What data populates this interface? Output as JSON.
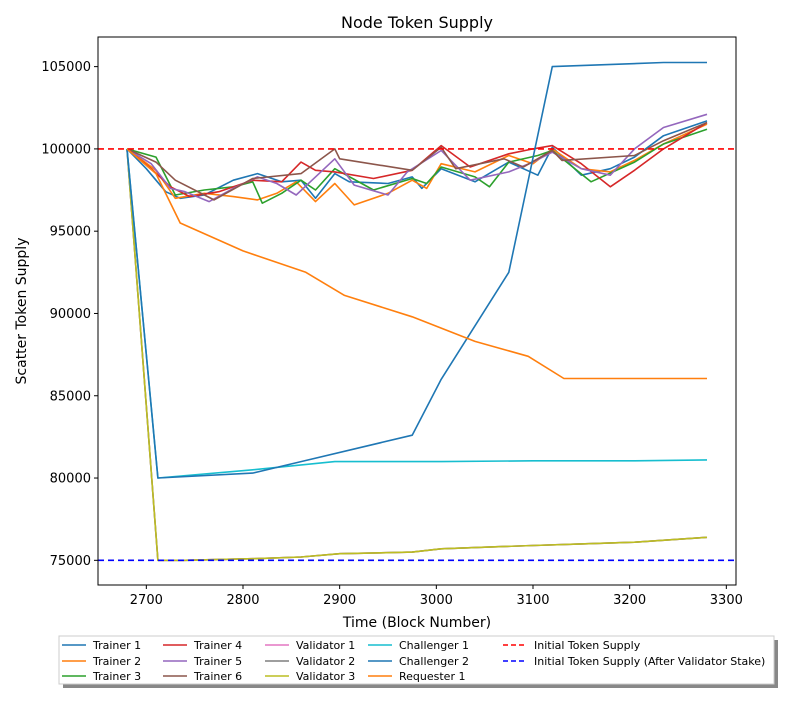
{
  "chart_data": {
    "type": "line",
    "title": "Node Token Supply",
    "xlabel": "Time (Block Number)",
    "ylabel": "Scatter Token Supply",
    "xlim": [
      2650,
      3310
    ],
    "ylim": [
      73500,
      106800
    ],
    "xticks": [
      2700,
      2800,
      2900,
      3000,
      3100,
      3200,
      3300
    ],
    "yticks": [
      75000,
      80000,
      85000,
      90000,
      95000,
      100000,
      105000
    ],
    "xtick_labels": [
      "2700",
      "2800",
      "2900",
      "3000",
      "3100",
      "3200",
      "3300"
    ],
    "ytick_labels": [
      "75000",
      "80000",
      "85000",
      "90000",
      "95000",
      "100000",
      "105000"
    ],
    "grid": false,
    "legend_position": "bottom, outside plot area",
    "series": [
      {
        "name": "Trainer 1",
        "color": "#1f77b4",
        "dash": "solid",
        "x": [
          2680,
          2700,
          2720,
          2735,
          2760,
          2790,
          2815,
          2840,
          2860,
          2875,
          2895,
          2910,
          2950,
          2975,
          2985,
          3005,
          3040,
          3075,
          3105,
          3120,
          3150,
          3180,
          3205,
          3235,
          3280
        ],
        "y": [
          100000,
          98800,
          97400,
          97000,
          97200,
          98100,
          98500,
          98000,
          98100,
          97000,
          98500,
          98000,
          97900,
          98300,
          97600,
          98800,
          98000,
          99200,
          98400,
          100100,
          98400,
          98800,
          99500,
          100800,
          101700
        ]
      },
      {
        "name": "Trainer 2",
        "color": "#ff7f0e",
        "dash": "solid",
        "x": [
          2680,
          2710,
          2730,
          2760,
          2790,
          2815,
          2835,
          2855,
          2875,
          2895,
          2915,
          2950,
          2975,
          2990,
          3005,
          3040,
          3075,
          3100,
          3120,
          3150,
          3180,
          3205,
          3235,
          3280
        ],
        "y": [
          100000,
          98700,
          97000,
          97300,
          97100,
          96900,
          97300,
          98000,
          96800,
          97900,
          96600,
          97300,
          98100,
          97600,
          99100,
          98600,
          99600,
          99100,
          100000,
          98800,
          98600,
          99300,
          100300,
          101500
        ]
      },
      {
        "name": "Trainer 3",
        "color": "#2ca02c",
        "dash": "solid",
        "x": [
          2680,
          2710,
          2730,
          2760,
          2790,
          2810,
          2820,
          2840,
          2860,
          2875,
          2895,
          2935,
          2975,
          2990,
          3005,
          3040,
          3055,
          3075,
          3105,
          3120,
          3160,
          3205,
          3235,
          3280
        ],
        "y": [
          100000,
          99500,
          97200,
          97500,
          97700,
          98000,
          96700,
          97300,
          98100,
          97500,
          98800,
          97500,
          98200,
          97900,
          98900,
          98300,
          97700,
          99200,
          99600,
          99900,
          98000,
          99200,
          100300,
          101200
        ]
      },
      {
        "name": "Trainer 4",
        "color": "#d62728",
        "dash": "solid",
        "x": [
          2680,
          2705,
          2725,
          2745,
          2775,
          2810,
          2840,
          2860,
          2875,
          2895,
          2935,
          2975,
          3005,
          3035,
          3075,
          3100,
          3120,
          3150,
          3180,
          3205,
          3235,
          3280
        ],
        "y": [
          100000,
          98800,
          97700,
          97100,
          97400,
          98100,
          98000,
          99200,
          98700,
          98600,
          98200,
          98700,
          100200,
          98900,
          99700,
          100000,
          100200,
          99100,
          97700,
          98700,
          100000,
          101600
        ]
      },
      {
        "name": "Trainer 5",
        "color": "#9467bd",
        "dash": "solid",
        "x": [
          2680,
          2705,
          2725,
          2740,
          2765,
          2790,
          2815,
          2835,
          2855,
          2875,
          2895,
          2915,
          2950,
          2970,
          3005,
          3035,
          3075,
          3100,
          3120,
          3150,
          3180,
          3205,
          3235,
          3280
        ],
        "y": [
          100000,
          99100,
          97600,
          97400,
          96800,
          97600,
          98300,
          97900,
          97200,
          98300,
          99400,
          97800,
          97200,
          98600,
          99900,
          98100,
          98600,
          99200,
          99800,
          98800,
          98400,
          100000,
          101300,
          102100
        ]
      },
      {
        "name": "Trainer 6",
        "color": "#8c564b",
        "dash": "solid",
        "x": [
          2680,
          2710,
          2730,
          2770,
          2810,
          2860,
          2895,
          2900,
          2975,
          3005,
          3020,
          3070,
          3090,
          3120,
          3130,
          3205,
          3235,
          3280
        ],
        "y": [
          100000,
          99200,
          98100,
          96900,
          98200,
          98500,
          100000,
          99400,
          98700,
          100100,
          98800,
          99400,
          98900,
          99900,
          99300,
          99600,
          100500,
          101600
        ]
      },
      {
        "name": "Validator 1",
        "color": "#e377c2",
        "dash": "solid",
        "x": [
          2680,
          2712,
          2740,
          2810,
          2860,
          2900,
          2975,
          3005,
          3050,
          3100,
          3150,
          3205,
          3280
        ],
        "y": [
          100000,
          75000,
          75000,
          75100,
          75200,
          75400,
          75500,
          75700,
          75800,
          75900,
          76000,
          76100,
          76400
        ]
      },
      {
        "name": "Validator 2",
        "color": "#7f7f7f",
        "dash": "solid",
        "x": [
          2680,
          2712,
          2740,
          2810,
          2860,
          2900,
          2975,
          3005,
          3050,
          3100,
          3150,
          3205,
          3280
        ],
        "y": [
          100000,
          75000,
          75000,
          75100,
          75200,
          75400,
          75500,
          75700,
          75800,
          75900,
          76000,
          76100,
          76400
        ]
      },
      {
        "name": "Validator 3",
        "color": "#bcbd22",
        "dash": "solid",
        "x": [
          2680,
          2712,
          2740,
          2810,
          2860,
          2900,
          2975,
          3005,
          3050,
          3100,
          3150,
          3205,
          3280
        ],
        "y": [
          100000,
          75000,
          75000,
          75100,
          75200,
          75400,
          75500,
          75700,
          75800,
          75900,
          76000,
          76100,
          76400
        ]
      },
      {
        "name": "Challenger 1",
        "color": "#17becf",
        "dash": "solid",
        "x": [
          2680,
          2712,
          2810,
          2895,
          3005,
          3100,
          3205,
          3280
        ],
        "y": [
          100000,
          80000,
          80500,
          81000,
          81000,
          81050,
          81050,
          81100
        ]
      },
      {
        "name": "Challenger 2",
        "color": "#1f77b4",
        "dash": "solid",
        "x": [
          2680,
          2712,
          2810,
          2860,
          2975,
          3005,
          3075,
          3120,
          3235,
          3280
        ],
        "y": [
          100000,
          80000,
          80300,
          81000,
          82600,
          86000,
          92500,
          105000,
          105250,
          105250
        ]
      },
      {
        "name": "Requester 1",
        "color": "#ff7f0e",
        "dash": "solid",
        "x": [
          2680,
          2710,
          2735,
          2800,
          2865,
          2905,
          2975,
          3040,
          3095,
          3132,
          3205,
          3280
        ],
        "y": [
          100000,
          98500,
          95500,
          93800,
          92500,
          91100,
          89800,
          88300,
          87400,
          86050,
          86050,
          86050
        ]
      },
      {
        "name": "Initial Token Supply",
        "color": "#ff0000",
        "dash": "dashed",
        "x": [
          2650,
          3310
        ],
        "y": [
          100000,
          100000
        ]
      },
      {
        "name": "Initial Token Supply (After Validator Stake)",
        "color": "#0000ff",
        "dash": "dashed",
        "x": [
          2650,
          3310
        ],
        "y": [
          75000,
          75000
        ]
      }
    ]
  }
}
